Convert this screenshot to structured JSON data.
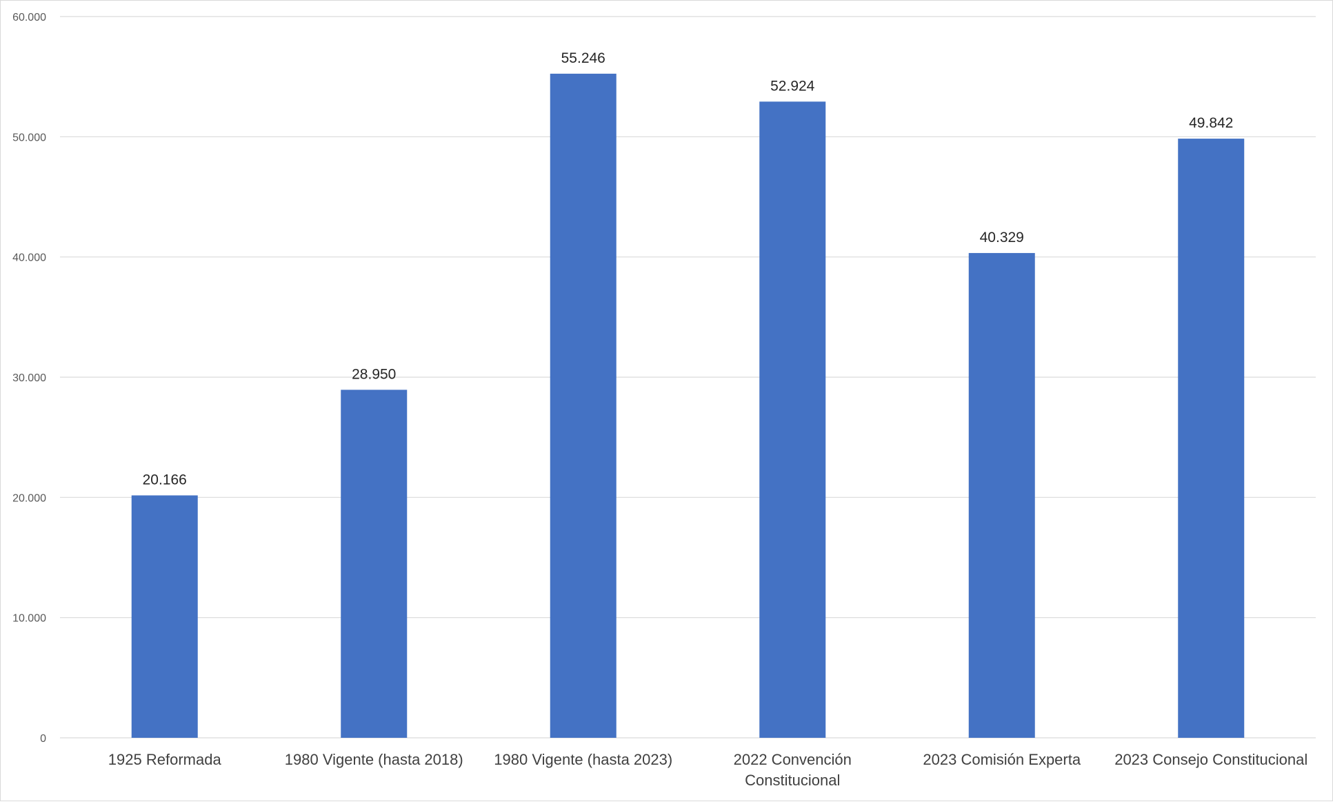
{
  "chart_data": {
    "type": "bar",
    "title": "",
    "xlabel": "",
    "ylabel": "",
    "categories": [
      "1925 Reformada",
      "1980 Vigente (hasta 2018)",
      "1980 Vigente (hasta 2023)",
      "2022 Convención Constitucional",
      "2023 Comisión Experta",
      "2023 Consejo Constitucional"
    ],
    "category_lines": [
      [
        "1925 Reformada"
      ],
      [
        "1980 Vigente (hasta 2018)"
      ],
      [
        "1980 Vigente (hasta 2023)"
      ],
      [
        "2022 Convención",
        "Constitucional"
      ],
      [
        "2023 Comisión Experta"
      ],
      [
        "2023 Consejo Constitucional"
      ]
    ],
    "values": [
      20166,
      28950,
      55246,
      52924,
      40329,
      49842
    ],
    "data_labels": [
      "20.166",
      "28.950",
      "55.246",
      "52.924",
      "40.329",
      "49.842"
    ],
    "ylim": [
      0,
      60000
    ],
    "yticks": [
      0,
      10000,
      20000,
      30000,
      40000,
      50000,
      60000
    ],
    "ytick_labels": [
      "0",
      "10.000",
      "20.000",
      "30.000",
      "40.000",
      "50.000",
      "60.000"
    ],
    "grid": true,
    "legend": "none",
    "bar_color": "#4472C4",
    "grid_color": "#d9d9d9"
  }
}
